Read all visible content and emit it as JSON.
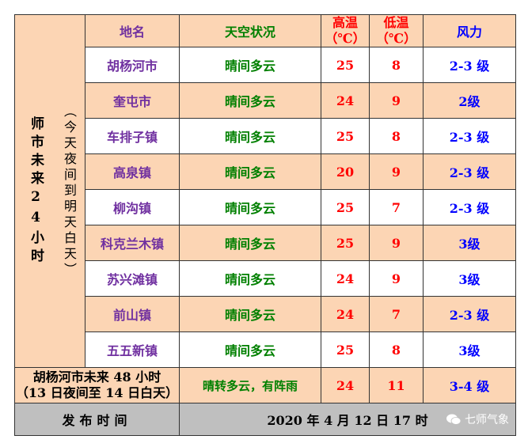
{
  "side_label": "师市未来24小时",
  "side_sub": "（今天夜间到明天白天）",
  "headers": {
    "name": "地名",
    "sky": "天空状况",
    "hi": "高温（℃）",
    "lo": "低温（℃）",
    "wind": "风力"
  },
  "rows": [
    {
      "name": "胡杨河市",
      "sky": "晴间多云",
      "hi": "25",
      "lo": "8",
      "wind": "2-3 级"
    },
    {
      "name": "奎屯市",
      "sky": "晴间多云",
      "hi": "24",
      "lo": "9",
      "wind": "2级"
    },
    {
      "name": "车排子镇",
      "sky": "晴间多云",
      "hi": "25",
      "lo": "8",
      "wind": "2-3 级"
    },
    {
      "name": "高泉镇",
      "sky": "晴间多云",
      "hi": "20",
      "lo": "9",
      "wind": "2-3 级"
    },
    {
      "name": "柳沟镇",
      "sky": "晴间多云",
      "hi": "25",
      "lo": "7",
      "wind": "2-3 级"
    },
    {
      "name": "科克兰木镇",
      "sky": "晴间多云",
      "hi": "25",
      "lo": "9",
      "wind": "3级"
    },
    {
      "name": "苏兴滩镇",
      "sky": "晴间多云",
      "hi": "24",
      "lo": "9",
      "wind": "3级"
    },
    {
      "name": "前山镇",
      "sky": "晴间多云",
      "hi": "24",
      "lo": "7",
      "wind": "2-3 级"
    },
    {
      "name": "五五新镇",
      "sky": "晴间多云",
      "hi": "25",
      "lo": "8",
      "wind": "3级"
    }
  ],
  "forecast48": {
    "title_line1": "胡杨河市未来 48 小时",
    "title_line2": "（13 日夜间至 14 日白天）",
    "sky": "晴转多云，有阵雨",
    "hi": "24",
    "lo": "11",
    "wind": "3-4 级"
  },
  "footer": {
    "label": "发布时间",
    "time": "2020 年 4 月 12 日 17 时",
    "watermark": "七师气象"
  },
  "colors": {
    "orange": "#fcd5b4",
    "gray": "#bfbfbf",
    "green": "#008000",
    "red": "#ff0000",
    "blue": "#0000ff",
    "purple": "#7030a0"
  }
}
